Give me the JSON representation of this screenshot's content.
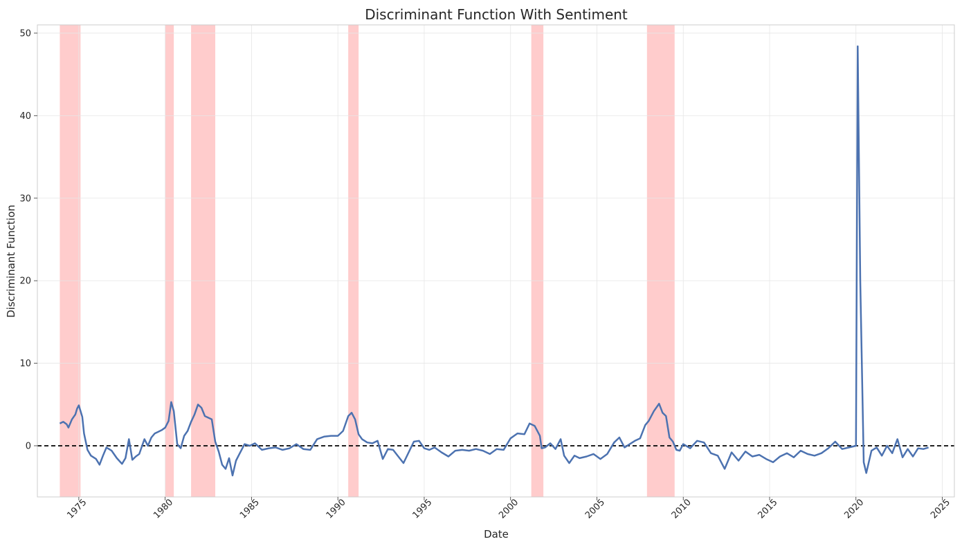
{
  "chart_data": {
    "type": "line",
    "title": "Discriminant Function With Sentiment",
    "xlabel": "Date",
    "ylabel": "Discriminant Function",
    "xlim": [
      1972.6,
      2025.7
    ],
    "ylim": [
      -6.2,
      51
    ],
    "x_ticks": [
      1975,
      1980,
      1985,
      1990,
      1995,
      2000,
      2005,
      2010,
      2015,
      2020,
      2025
    ],
    "x_tick_labels": [
      "1975",
      "1980",
      "1985",
      "1990",
      "1995",
      "2000",
      "2005",
      "2010",
      "2015",
      "2020",
      "2025"
    ],
    "y_ticks": [
      0,
      10,
      20,
      30,
      40,
      50
    ],
    "y_tick_labels": [
      "0",
      "10",
      "20",
      "30",
      "40",
      "50"
    ],
    "grid": true,
    "reference_line": {
      "y": 0,
      "style": "dashed",
      "color": "#000000"
    },
    "recession_bands": [
      {
        "start": 1973.9,
        "end": 1975.1
      },
      {
        "start": 1980.0,
        "end": 1980.5
      },
      {
        "start": 1981.5,
        "end": 1982.9
      },
      {
        "start": 1990.6,
        "end": 1991.2
      },
      {
        "start": 2001.2,
        "end": 2001.9
      },
      {
        "start": 2007.9,
        "end": 2009.5
      }
    ],
    "band_color": "#ff9999",
    "series": [
      {
        "color": "#4c72b0",
        "x": [
          1973.9,
          1974.1,
          1974.3,
          1974.4,
          1974.6,
          1974.8,
          1974.9,
          1975.0,
          1975.2,
          1975.3,
          1975.5,
          1975.7,
          1976.0,
          1976.2,
          1976.4,
          1976.6,
          1976.9,
          1977.2,
          1977.5,
          1977.7,
          1977.9,
          1978.1,
          1978.3,
          1978.5,
          1978.8,
          1979.0,
          1979.2,
          1979.4,
          1979.6,
          1979.8,
          1980.0,
          1980.2,
          1980.35,
          1980.5,
          1980.7,
          1980.9,
          1981.1,
          1981.3,
          1981.5,
          1981.7,
          1981.9,
          1982.1,
          1982.3,
          1982.5,
          1982.7,
          1982.9,
          1983.1,
          1983.3,
          1983.5,
          1983.7,
          1983.9,
          1984.1,
          1984.3,
          1984.6,
          1984.9,
          1985.2,
          1985.6,
          1986.0,
          1986.4,
          1986.8,
          1987.2,
          1987.6,
          1988.0,
          1988.4,
          1988.8,
          1989.2,
          1989.6,
          1990.0,
          1990.3,
          1990.6,
          1990.8,
          1991.0,
          1991.2,
          1991.4,
          1991.7,
          1992.0,
          1992.3,
          1992.6,
          1992.9,
          1993.2,
          1993.5,
          1993.8,
          1994.1,
          1994.4,
          1994.7,
          1995.0,
          1995.3,
          1995.6,
          1996.0,
          1996.4,
          1996.8,
          1997.2,
          1997.6,
          1998.0,
          1998.4,
          1998.8,
          1999.2,
          1999.6,
          2000.0,
          2000.4,
          2000.8,
          2001.1,
          2001.4,
          2001.7,
          2001.8,
          2002.0,
          2002.3,
          2002.6,
          2002.9,
          2003.1,
          2003.4,
          2003.7,
          2004.0,
          2004.4,
          2004.8,
          2005.2,
          2005.6,
          2006.0,
          2006.3,
          2006.6,
          2006.9,
          2007.2,
          2007.5,
          2007.8,
          2008.0,
          2008.3,
          2008.6,
          2008.8,
          2009.0,
          2009.2,
          2009.4,
          2009.6,
          2009.8,
          2010.0,
          2010.4,
          2010.8,
          2011.2,
          2011.6,
          2012.0,
          2012.4,
          2012.8,
          2013.2,
          2013.6,
          2014.0,
          2014.4,
          2014.8,
          2015.2,
          2015.6,
          2016.0,
          2016.4,
          2016.8,
          2017.2,
          2017.6,
          2018.0,
          2018.4,
          2018.8,
          2019.2,
          2019.6,
          2020.0,
          2020.1,
          2020.25,
          2020.45,
          2020.6,
          2020.9,
          2021.2,
          2021.5,
          2021.8,
          2022.1,
          2022.4,
          2022.7,
          2023.0,
          2023.3,
          2023.6,
          2023.9,
          2024.2
        ],
        "y": [
          2.7,
          2.9,
          2.6,
          2.2,
          3.2,
          3.8,
          4.5,
          4.9,
          3.5,
          1.5,
          -0.5,
          -1.2,
          -1.6,
          -2.3,
          -1.2,
          -0.2,
          -0.6,
          -1.5,
          -2.2,
          -1.5,
          0.8,
          -1.7,
          -1.3,
          -1.0,
          0.8,
          0.0,
          1.0,
          1.5,
          1.7,
          1.9,
          2.2,
          3.0,
          5.3,
          4.2,
          0.2,
          -0.3,
          1.2,
          1.8,
          2.9,
          3.8,
          5.0,
          4.6,
          3.6,
          3.4,
          3.2,
          0.5,
          -0.7,
          -2.3,
          -2.8,
          -1.5,
          -3.6,
          -1.8,
          -1.0,
          0.2,
          0.0,
          0.3,
          -0.5,
          -0.3,
          -0.2,
          -0.5,
          -0.3,
          0.2,
          -0.4,
          -0.5,
          0.8,
          1.1,
          1.2,
          1.2,
          1.8,
          3.6,
          4.0,
          3.2,
          1.4,
          0.8,
          0.4,
          0.3,
          0.6,
          -1.6,
          -0.4,
          -0.5,
          -1.3,
          -2.1,
          -0.8,
          0.5,
          0.6,
          -0.3,
          -0.5,
          -0.2,
          -0.8,
          -1.3,
          -0.6,
          -0.5,
          -0.6,
          -0.4,
          -0.6,
          -1.0,
          -0.4,
          -0.5,
          0.9,
          1.5,
          1.4,
          2.7,
          2.4,
          1.2,
          -0.3,
          -0.2,
          0.3,
          -0.4,
          0.8,
          -1.2,
          -2.1,
          -1.2,
          -1.5,
          -1.3,
          -1.0,
          -1.6,
          -1.0,
          0.4,
          1.0,
          -0.2,
          0.2,
          0.6,
          0.9,
          2.5,
          3.0,
          4.2,
          5.1,
          4.0,
          3.6,
          1.0,
          0.5,
          -0.5,
          -0.6,
          0.2,
          -0.3,
          0.6,
          0.4,
          -0.9,
          -1.2,
          -2.8,
          -0.8,
          -1.8,
          -0.7,
          -1.3,
          -1.1,
          -1.6,
          -2.0,
          -1.3,
          -0.9,
          -1.4,
          -0.6,
          -1.0,
          -1.2,
          -0.9,
          -0.3,
          0.5,
          -0.4,
          -0.2,
          0.0,
          48.4,
          20.0,
          -2.0,
          -3.3,
          -0.6,
          -0.2,
          -1.2,
          0.0,
          -0.9,
          0.8,
          -1.4,
          -0.4,
          -1.3,
          -0.3,
          -0.4,
          -0.2
        ]
      }
    ]
  }
}
